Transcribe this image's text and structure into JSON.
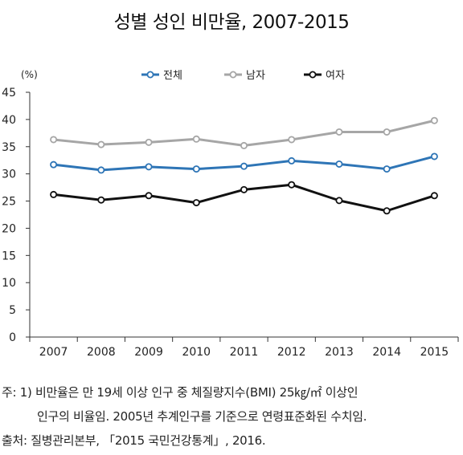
{
  "chart_data": {
    "type": "line",
    "title": "성별 성인 비만율, 2007-2015",
    "unit_label": "(%)",
    "x": [
      "2007",
      "2008",
      "2009",
      "2010",
      "2011",
      "2012",
      "2013",
      "2014",
      "2015"
    ],
    "ylim": [
      0,
      45
    ],
    "yticks": [
      0,
      5,
      10,
      15,
      20,
      25,
      30,
      35,
      40,
      45
    ],
    "grid": false,
    "legend_position": "top",
    "series": [
      {
        "name": "전체",
        "color": "#2e75b6",
        "values": [
          31.7,
          30.7,
          31.3,
          30.9,
          31.4,
          32.4,
          31.8,
          30.9,
          33.2
        ]
      },
      {
        "name": "남자",
        "color": "#a6a6a6",
        "values": [
          36.3,
          35.4,
          35.8,
          36.4,
          35.2,
          36.3,
          37.7,
          37.7,
          39.8
        ]
      },
      {
        "name": "여자",
        "color": "#111111",
        "values": [
          26.2,
          25.2,
          26.0,
          24.7,
          27.1,
          28.0,
          25.1,
          23.2,
          26.0
        ]
      }
    ]
  },
  "footnote": {
    "line1": "주: 1) 비만율은 만 19세 이상 인구 중 체질량지수(BMI) 25㎏/㎡ 이상인",
    "line2": "인구의 비율임. 2005년 추계인구를 기준으로 연령표준화된 수치임.",
    "source": "출처: 질병관리본부, 「2015 국민건강통계」, 2016."
  }
}
